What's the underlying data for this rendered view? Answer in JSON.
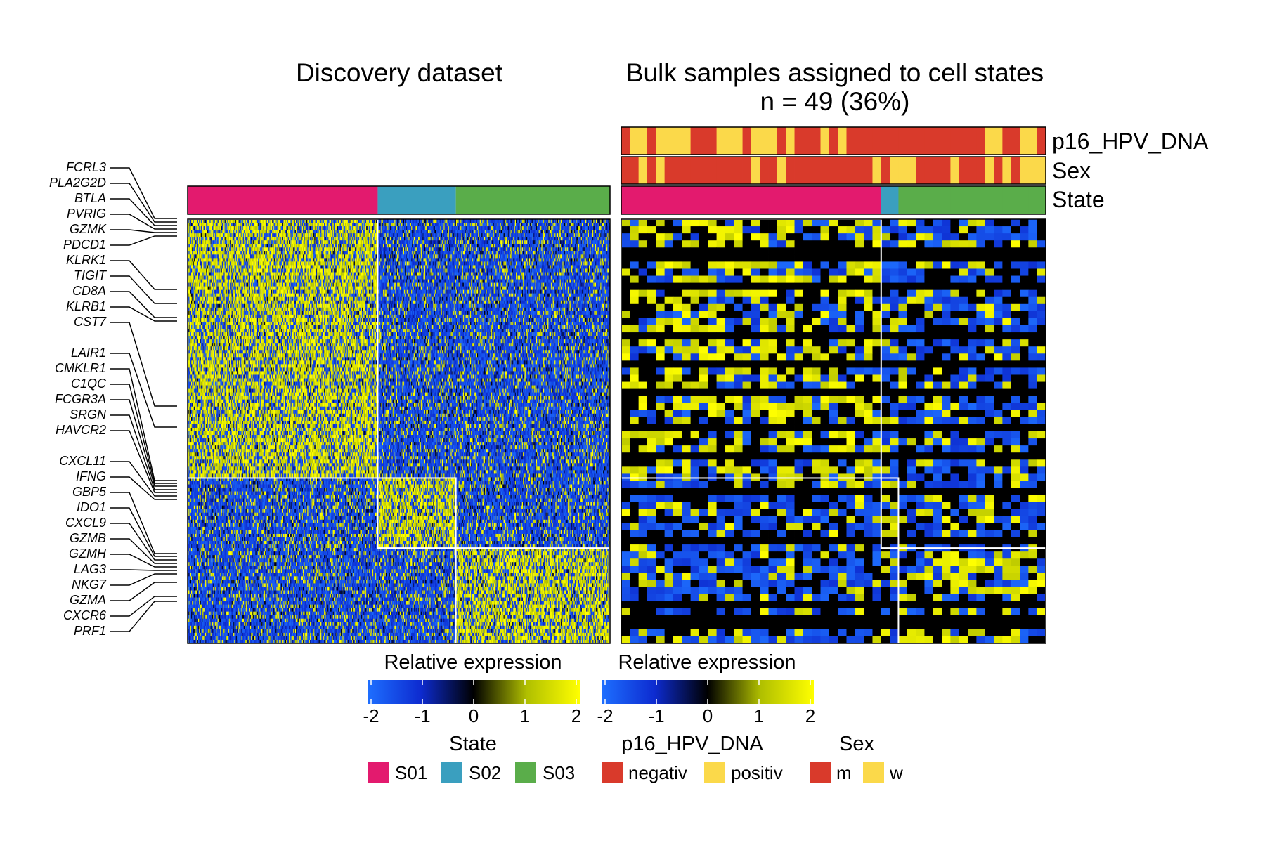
{
  "chart_data": {
    "type": "heatmap",
    "panels": [
      {
        "title": "Discovery dataset",
        "state_blocks": [
          {
            "state": "S01",
            "fraction": 0.45
          },
          {
            "state": "S02",
            "fraction": 0.185
          },
          {
            "state": "S03",
            "fraction": 0.365
          }
        ],
        "gene_block_fractions": [
          0.61,
          0.165,
          0.225
        ],
        "columns": 480,
        "rows": 120
      },
      {
        "title_line1": "Bulk samples assigned to cell states",
        "title_line2": "n = 49 (36%)",
        "samples": 49,
        "state_counts": {
          "S01": 30,
          "S02": 2,
          "S03": 17
        },
        "gene_block_fractions": [
          0.61,
          0.165,
          0.225
        ],
        "rows": 60
      }
    ],
    "annotation_tracks": [
      "p16_HPV_DNA",
      "Sex",
      "State"
    ],
    "p16_HPV_DNA_track": [
      "negativ",
      "positiv",
      "positiv",
      "negativ",
      "positiv",
      "positiv",
      "positiv",
      "positiv",
      "negativ",
      "negativ",
      "negativ",
      "positiv",
      "positiv",
      "positiv",
      "negativ",
      "positiv",
      "positiv",
      "positiv",
      "negativ",
      "positiv",
      "negativ",
      "negativ",
      "negativ",
      "positiv",
      "negativ",
      "positiv",
      "negativ",
      "negativ",
      "negativ",
      "negativ",
      "negativ",
      "negativ",
      "negativ",
      "negativ",
      "negativ",
      "negativ",
      "negativ",
      "negativ",
      "negativ",
      "negativ",
      "negativ",
      "negativ",
      "positiv",
      "positiv",
      "negativ",
      "negativ",
      "positiv",
      "positiv",
      "negativ"
    ],
    "sex_track": [
      "m",
      "m",
      "w",
      "m",
      "w",
      "m",
      "m",
      "m",
      "m",
      "m",
      "m",
      "m",
      "m",
      "m",
      "m",
      "w",
      "m",
      "m",
      "w",
      "m",
      "m",
      "m",
      "m",
      "m",
      "m",
      "m",
      "m",
      "m",
      "m",
      "w",
      "m",
      "w",
      "w",
      "w",
      "m",
      "m",
      "m",
      "m",
      "w",
      "m",
      "m",
      "m",
      "w",
      "m",
      "w",
      "m",
      "w",
      "w",
      "w"
    ],
    "color_scale": {
      "label": "Relative expression",
      "min": -2,
      "max": 2,
      "ticks": [
        -2,
        -1,
        0,
        1,
        2
      ],
      "colors": [
        "#1e6fff",
        "#0d2bd0",
        "#000000",
        "#b0bf00",
        "#ffff00"
      ]
    },
    "genes": [
      "FCRL3",
      "PLA2G2D",
      "BTLA",
      "PVRIG",
      "GZMK",
      "PDCD1",
      "KLRK1",
      "TIGIT",
      "CD8A",
      "KLRB1",
      "CST7",
      "LAIR1",
      "CMKLR1",
      "C1QC",
      "FCGR3A",
      "SRGN",
      "HAVCR2",
      "CXCL11",
      "IFNG",
      "GBP5",
      "IDO1",
      "CXCL9",
      "GZMB",
      "GZMH",
      "LAG3",
      "NKG7",
      "GZMA",
      "CXCR6",
      "PRF1"
    ]
  },
  "legends": {
    "expr_label_1": "Relative expression",
    "expr_label_2": "Relative expression",
    "ticks": [
      "-2",
      "-1",
      "0",
      "1",
      "2"
    ],
    "state": {
      "title": "State",
      "items": [
        {
          "label": "S01",
          "color": "#e31a6e"
        },
        {
          "label": "S02",
          "color": "#3a9fbf"
        },
        {
          "label": "S03",
          "color": "#5aad4a"
        }
      ]
    },
    "p16": {
      "title": "p16_HPV_DNA",
      "items": [
        {
          "label": "negativ",
          "color": "#d93a2b"
        },
        {
          "label": "positiv",
          "color": "#fbd94a"
        }
      ]
    },
    "sex": {
      "title": "Sex",
      "items": [
        {
          "label": "m",
          "color": "#d93a2b"
        },
        {
          "label": "w",
          "color": "#fbd94a"
        }
      ]
    }
  },
  "labels": {
    "title_left": "Discovery dataset",
    "title_right_1": "Bulk samples assigned to cell states",
    "title_right_2": "n = 49 (36%)",
    "track_p16": "p16_HPV_DNA",
    "track_sex": "Sex",
    "track_state": "State"
  }
}
